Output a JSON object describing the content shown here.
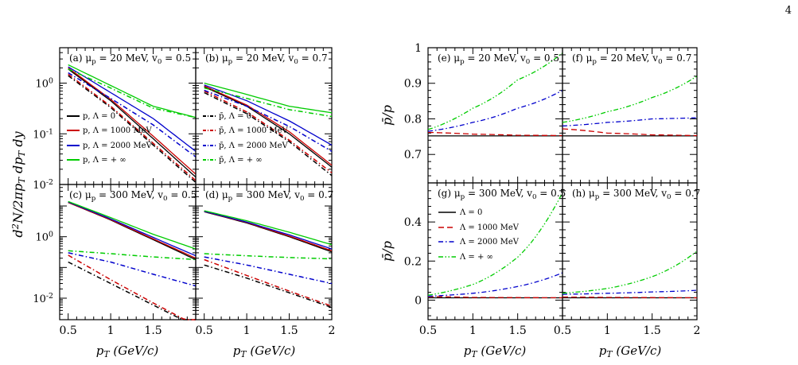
{
  "page_number": "4",
  "colors": {
    "lambda_0": "#000000",
    "lambda_1000": "#cc0000",
    "lambda_2000": "#0000cc",
    "lambda_inf": "#00cc00"
  },
  "chart_data": [
    {
      "type": "line",
      "figure": "left",
      "ylabel": "d²N/2πp_T dp_T dy",
      "xlabel": "p_T (GeV/c)",
      "yscale": "log",
      "xlim": [
        0.4,
        2.0
      ],
      "x_ticks": [
        "0.5",
        "1",
        "1.5",
        "2"
      ],
      "y_ticks": [
        "10^-2",
        "10^-1",
        "10^0"
      ],
      "legend_entries": [
        "p, Λ = 0",
        "p, Λ = 1000 MeV",
        "p, Λ = 2000 MeV",
        "p, Λ = + ∞",
        "p̄, Λ = 0",
        "p̄, Λ = 1000 MeV",
        "p̄, Λ = 2000 MeV",
        "p̄, Λ = + ∞"
      ],
      "panels": [
        {
          "label": "(a) μ_p = 20 MeV, v_0 = 0.5",
          "ylim": [
            0.01,
            5
          ],
          "x": [
            0.5,
            1.0,
            1.5,
            2.0
          ],
          "series": [
            {
              "name": "p, Λ = 0",
              "style": "solid",
              "values": [
                1.9,
                0.45,
                0.08,
                0.014
              ]
            },
            {
              "name": "p, Λ = 1000 MeV",
              "style": "solid",
              "values": [
                2.0,
                0.48,
                0.09,
                0.016
              ]
            },
            {
              "name": "p, Λ = 2000 MeV",
              "style": "solid",
              "values": [
                2.1,
                0.65,
                0.2,
                0.045
              ]
            },
            {
              "name": "p, Λ = + ∞",
              "style": "solid",
              "values": [
                2.3,
                0.9,
                0.35,
                0.21
              ]
            },
            {
              "name": "p̄, Λ = 0",
              "style": "dashdot",
              "values": [
                1.4,
                0.33,
                0.06,
                0.011
              ]
            },
            {
              "name": "p̄, Λ = 1000 MeV",
              "style": "dashdot",
              "values": [
                1.5,
                0.35,
                0.065,
                0.012
              ]
            },
            {
              "name": "p̄, Λ = 2000 MeV",
              "style": "dashdot",
              "values": [
                1.6,
                0.5,
                0.15,
                0.035
              ]
            },
            {
              "name": "p̄, Λ = + ∞",
              "style": "dashdot",
              "values": [
                1.9,
                0.8,
                0.32,
                0.21
              ]
            }
          ]
        },
        {
          "label": "(b) μ_p = 20 MeV, v_0 = 0.7",
          "ylim": [
            0.01,
            5
          ],
          "x": [
            0.5,
            1.0,
            1.5,
            2.0
          ],
          "series": [
            {
              "name": "p, Λ = 0",
              "style": "solid",
              "values": [
                0.85,
                0.35,
                0.1,
                0.022
              ]
            },
            {
              "name": "p, Λ = 1000 MeV",
              "style": "solid",
              "values": [
                0.88,
                0.37,
                0.11,
                0.024
              ]
            },
            {
              "name": "p, Λ = 2000 MeV",
              "style": "solid",
              "values": [
                0.92,
                0.45,
                0.18,
                0.06
              ]
            },
            {
              "name": "p, Λ = + ∞",
              "style": "solid",
              "values": [
                1.0,
                0.6,
                0.35,
                0.26
              ]
            },
            {
              "name": "p̄, Λ = 0",
              "style": "dashdot",
              "values": [
                0.65,
                0.25,
                0.07,
                0.015
              ]
            },
            {
              "name": "p̄, Λ = 1000 MeV",
              "style": "dashdot",
              "values": [
                0.7,
                0.27,
                0.075,
                0.017
              ]
            },
            {
              "name": "p̄, Λ = 2000 MeV",
              "style": "dashdot",
              "values": [
                0.72,
                0.35,
                0.14,
                0.045
              ]
            },
            {
              "name": "p̄, Λ = + ∞",
              "style": "dashdot",
              "values": [
                0.8,
                0.5,
                0.3,
                0.22
              ]
            }
          ]
        },
        {
          "label": "(c) μ_p = 300 MeV, v_0 = 0.5",
          "ylim": [
            0.002,
            50
          ],
          "x": [
            0.5,
            1.0,
            1.5,
            2.0
          ],
          "series": [
            {
              "name": "p, Λ = 0",
              "style": "solid",
              "values": [
                13,
                3.5,
                0.8,
                0.18
              ]
            },
            {
              "name": "p, Λ = 1000 MeV",
              "style": "solid",
              "values": [
                13,
                3.6,
                0.85,
                0.2
              ]
            },
            {
              "name": "p, Λ = 2000 MeV",
              "style": "solid",
              "values": [
                13.5,
                3.8,
                0.95,
                0.24
              ]
            },
            {
              "name": "p, Λ = + ∞",
              "style": "solid",
              "values": [
                14,
                4.2,
                1.2,
                0.4
              ]
            },
            {
              "name": "p̄, Λ = 0",
              "style": "dashdot",
              "values": [
                0.15,
                0.03,
                0.006,
                0.0012
              ]
            },
            {
              "name": "p̄, Λ = 1000 MeV",
              "style": "dashdot",
              "values": [
                0.25,
                0.04,
                0.007,
                0.0013
              ]
            },
            {
              "name": "p̄, Λ = 2000 MeV",
              "style": "dashdot",
              "values": [
                0.3,
                0.15,
                0.06,
                0.025
              ]
            },
            {
              "name": "p̄, Λ = + ∞",
              "style": "dashdot",
              "values": [
                0.35,
                0.28,
                0.22,
                0.18
              ]
            }
          ]
        },
        {
          "label": "(d) μ_p = 300 MeV, v_0 = 0.7",
          "ylim": [
            0.002,
            50
          ],
          "x": [
            0.5,
            1.0,
            1.5,
            2.0
          ],
          "series": [
            {
              "name": "p, Λ = 0",
              "style": "solid",
              "values": [
                6.5,
                2.8,
                1.0,
                0.32
              ]
            },
            {
              "name": "p, Λ = 1000 MeV",
              "style": "solid",
              "values": [
                6.6,
                2.9,
                1.05,
                0.35
              ]
            },
            {
              "name": "p, Λ = 2000 MeV",
              "style": "solid",
              "values": [
                6.7,
                3.0,
                1.15,
                0.4
              ]
            },
            {
              "name": "p, Λ = + ∞",
              "style": "solid",
              "values": [
                7.0,
                3.3,
                1.4,
                0.55
              ]
            },
            {
              "name": "p̄, Λ = 0",
              "style": "dashdot",
              "values": [
                0.12,
                0.045,
                0.015,
                0.005
              ]
            },
            {
              "name": "p̄, Λ = 1000 MeV",
              "style": "dashdot",
              "values": [
                0.18,
                0.055,
                0.017,
                0.0055
              ]
            },
            {
              "name": "p̄, Λ = 2000 MeV",
              "style": "dashdot",
              "values": [
                0.22,
                0.12,
                0.06,
                0.03
              ]
            },
            {
              "name": "p̄, Λ = + ∞",
              "style": "dashdot",
              "values": [
                0.28,
                0.24,
                0.21,
                0.19
              ]
            }
          ]
        }
      ]
    },
    {
      "type": "line",
      "figure": "right",
      "ylabel": "p̄/p",
      "xlabel": "p_T (GeV/c)",
      "xlim": [
        0.5,
        2.0
      ],
      "x_ticks": [
        "0.5",
        "1",
        "1.5",
        "2"
      ],
      "legend_entries": [
        "Λ = 0",
        "Λ = 1000 MeV",
        "Λ = 2000 MeV",
        "Λ = + ∞"
      ],
      "panels": [
        {
          "label": "(e) μ_p = 20 MeV, v_0 = 0.5",
          "ylim": [
            0.62,
            1.0
          ],
          "y_ticks": [
            "0.7",
            "0.8",
            "0.9",
            "1"
          ],
          "x": [
            0.5,
            1.0,
            1.5,
            2.0
          ],
          "series": [
            {
              "name": "Λ = 0",
              "values": [
                0.752,
                0.752,
                0.752,
                0.752
              ]
            },
            {
              "name": "Λ = 1000 MeV",
              "values": [
                0.762,
                0.757,
                0.754,
                0.753
              ]
            },
            {
              "name": "Λ = 2000 MeV",
              "values": [
                0.765,
                0.79,
                0.83,
                0.88
              ]
            },
            {
              "name": "Λ = + ∞",
              "values": [
                0.77,
                0.83,
                0.91,
                0.985
              ]
            }
          ]
        },
        {
          "label": "(f) μ_p = 20 MeV, v_0 = 0.7",
          "ylim": [
            0.62,
            1.0
          ],
          "y_ticks": [
            "0.7",
            "0.8",
            "0.9",
            "1"
          ],
          "x": [
            0.5,
            1.0,
            1.5,
            2.0
          ],
          "series": [
            {
              "name": "Λ = 0",
              "values": [
                0.752,
                0.752,
                0.752,
                0.752
              ]
            },
            {
              "name": "Λ = 1000 MeV",
              "values": [
                0.772,
                0.76,
                0.755,
                0.753
              ]
            },
            {
              "name": "Λ = 2000 MeV",
              "values": [
                0.78,
                0.79,
                0.8,
                0.803
              ]
            },
            {
              "name": "Λ = + ∞",
              "values": [
                0.79,
                0.82,
                0.86,
                0.92
              ]
            }
          ]
        },
        {
          "label": "(g) μ_p = 300 MeV, v_0 = 0.5",
          "ylim": [
            -0.1,
            0.6
          ],
          "y_ticks": [
            "0",
            "0.2",
            "0.4"
          ],
          "x": [
            0.5,
            1.0,
            1.5,
            2.0
          ],
          "series": [
            {
              "name": "Λ = 0",
              "values": [
                0.012,
                0.012,
                0.012,
                0.012
              ]
            },
            {
              "name": "Λ = 1000 MeV",
              "values": [
                0.018,
                0.014,
                0.013,
                0.012
              ]
            },
            {
              "name": "Λ = 2000 MeV",
              "values": [
                0.02,
                0.035,
                0.07,
                0.14
              ]
            },
            {
              "name": "Λ = + ∞",
              "values": [
                0.025,
                0.08,
                0.22,
                0.55
              ]
            }
          ]
        },
        {
          "label": "(h) μ_p = 300 MeV, v_0 = 0.7",
          "ylim": [
            -0.1,
            0.6
          ],
          "y_ticks": [
            "0",
            "0.2",
            "0.4"
          ],
          "x": [
            0.5,
            1.0,
            1.5,
            2.0
          ],
          "series": [
            {
              "name": "Λ = 0",
              "values": [
                0.012,
                0.012,
                0.012,
                0.012
              ]
            },
            {
              "name": "Λ = 1000 MeV",
              "values": [
                0.016,
                0.014,
                0.013,
                0.012
              ]
            },
            {
              "name": "Λ = 2000 MeV",
              "values": [
                0.03,
                0.035,
                0.042,
                0.05
              ]
            },
            {
              "name": "Λ = + ∞",
              "values": [
                0.035,
                0.06,
                0.12,
                0.25
              ]
            }
          ]
        }
      ]
    }
  ]
}
